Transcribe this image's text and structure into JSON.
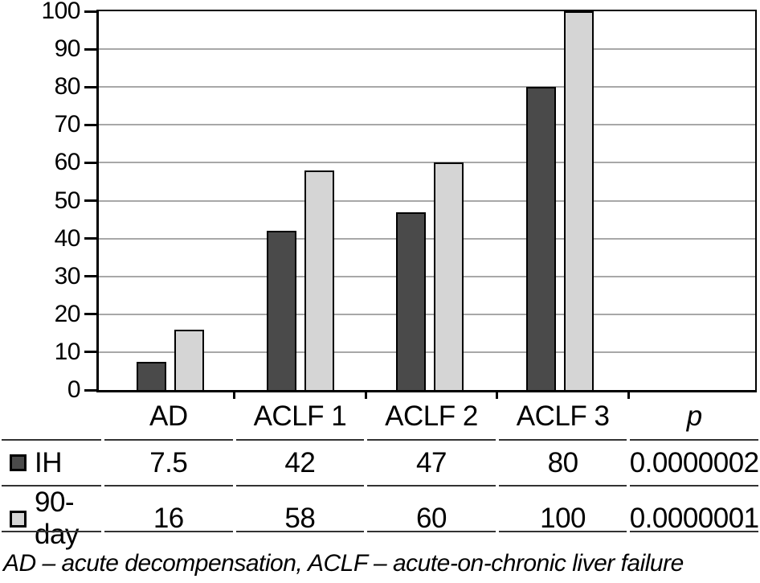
{
  "chart_data": {
    "type": "bar",
    "title": "",
    "xlabel": "",
    "ylabel": "",
    "categories": [
      "AD",
      "ACLF 1",
      "ACLF 2",
      "ACLF 3",
      "p"
    ],
    "series": [
      {
        "name": "IH",
        "color": "#4a4a4a",
        "values": [
          7.5,
          42,
          47,
          80,
          null
        ]
      },
      {
        "name": "90-day",
        "color": "#d5d5d5",
        "values": [
          16,
          58,
          60,
          100,
          null
        ]
      }
    ],
    "ylim": [
      0,
      100
    ],
    "yticks": [
      0,
      10,
      20,
      30,
      40,
      50,
      60,
      70,
      80,
      90,
      100
    ],
    "grid": true,
    "gridline_color": "#a8a8a8",
    "bar_border_color": "#000000",
    "legend_position": "table below chart"
  },
  "table": {
    "header": [
      "",
      "AD",
      "ACLF 1",
      "ACLF 2",
      "ACLF 3",
      "p"
    ],
    "rows": [
      {
        "label": "IH",
        "swatch_color": "#4a4a4a",
        "values": [
          "7.5",
          "42",
          "47",
          "80",
          "0.0000002"
        ]
      },
      {
        "label": "90-day",
        "swatch_color": "#d5d5d5",
        "values": [
          "16",
          "58",
          "60",
          "100",
          "0.0000001"
        ]
      }
    ]
  },
  "footnote": "AD – acute decompensation, ACLF – acute-on-chronic liver failure"
}
